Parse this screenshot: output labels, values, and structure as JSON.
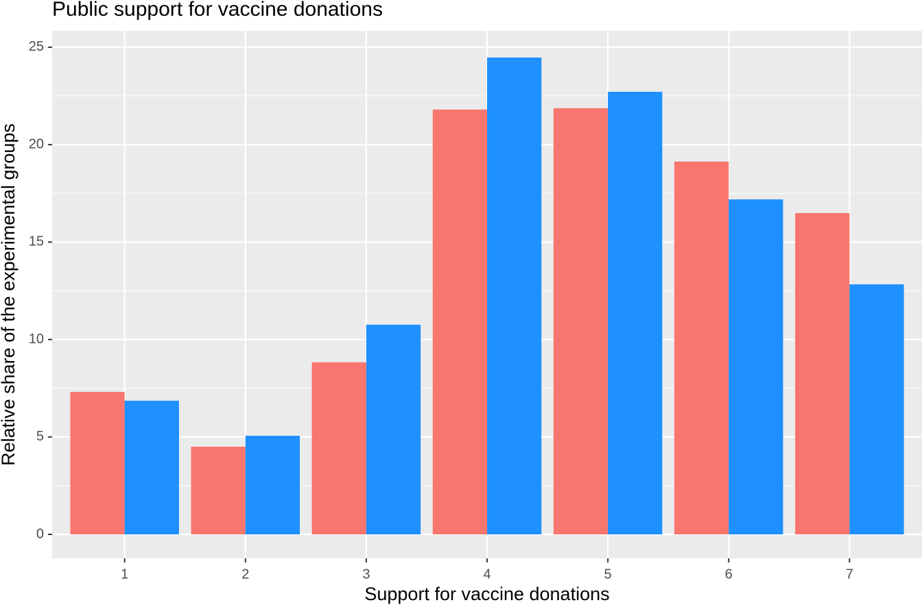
{
  "chart_data": {
    "type": "bar",
    "title": "Public support for vaccine donations",
    "x_label": "Support for vaccine donations",
    "y_label": "Relative share of the experimental groups",
    "categories": [
      "1",
      "2",
      "3",
      "4",
      "5",
      "6",
      "7"
    ],
    "series": [
      {
        "color": "#f8766d",
        "values": [
          7.31,
          4.5,
          8.83,
          21.8,
          21.87,
          19.13,
          16.49
        ]
      },
      {
        "color": "#1e90ff",
        "values": [
          6.86,
          5.06,
          10.76,
          24.47,
          22.71,
          17.19,
          12.83
        ]
      }
    ],
    "ylim": [
      -1.23,
      25.84
    ],
    "yticks": [
      0,
      5,
      10,
      15,
      20,
      25
    ],
    "grid": true
  }
}
